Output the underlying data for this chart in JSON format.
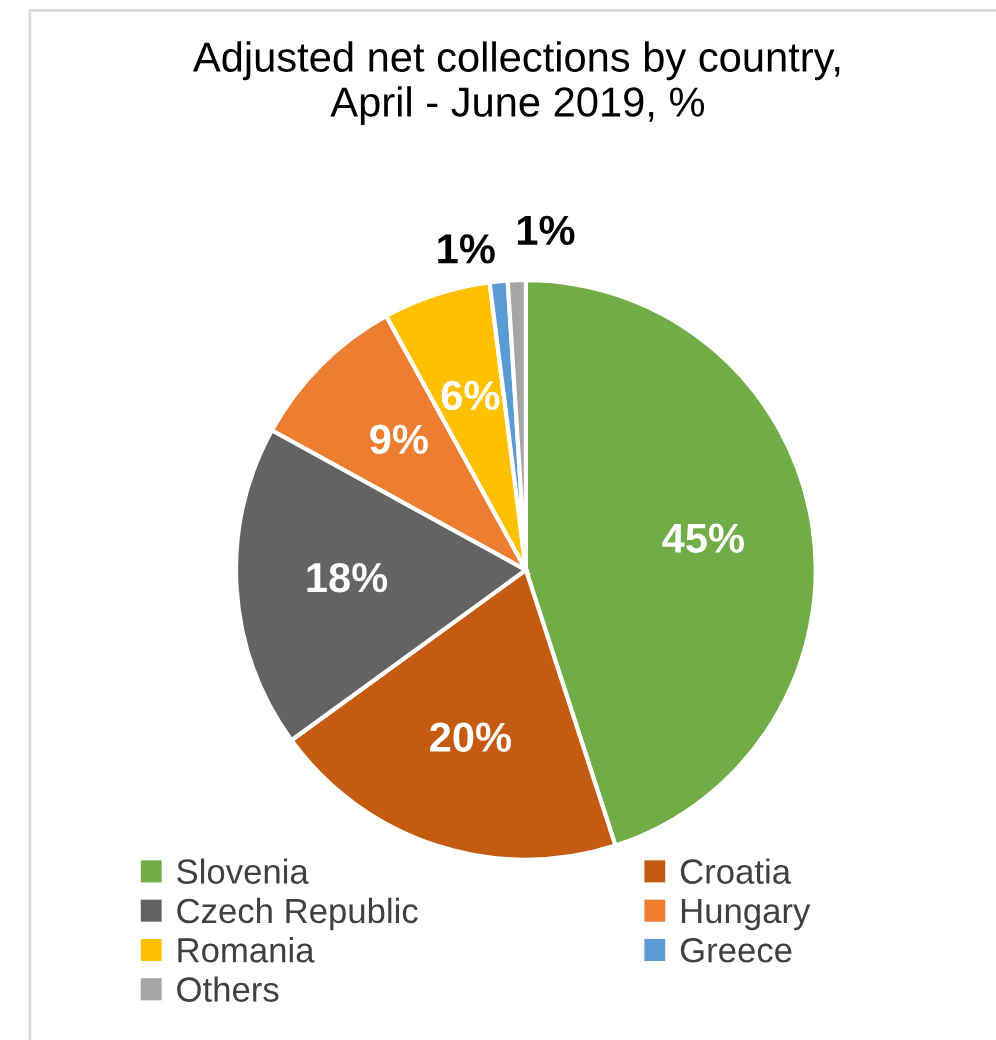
{
  "chart_data": {
    "type": "pie",
    "title": "Adjusted net collections by country,\nApril - June 2019, %",
    "categories": [
      "Slovenia",
      "Croatia",
      "Czech Republic",
      "Hungary",
      "Romania",
      "Greece",
      "Others"
    ],
    "values": [
      45,
      20,
      18,
      9,
      6,
      1,
      1
    ],
    "value_labels": [
      "45%",
      "20%",
      "18%",
      "9%",
      "6%",
      "1%",
      "1%"
    ],
    "colors": [
      "#70ad47",
      "#c55a11",
      "#636363",
      "#ed7d31",
      "#ffc000",
      "#5b9bd5",
      "#a5a5a5"
    ],
    "legend": "bottom"
  }
}
